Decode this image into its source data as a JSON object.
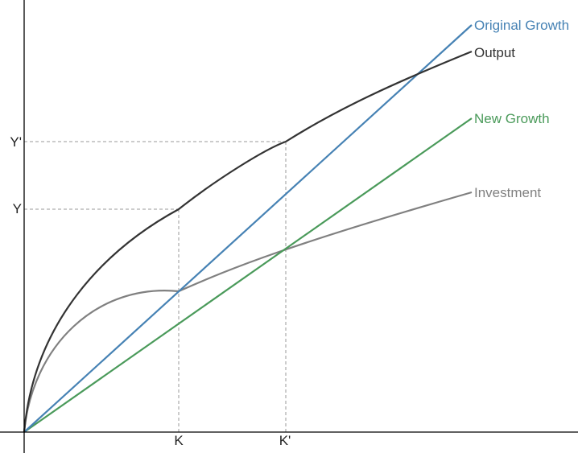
{
  "chart_data": {
    "type": "line",
    "title": "",
    "xlabel": "",
    "ylabel": "",
    "axis_ticks": {
      "x": [
        {
          "id": "k",
          "label": "K"
        },
        {
          "id": "k_prime",
          "label": "K'"
        }
      ],
      "y": [
        {
          "id": "y",
          "label": "Y"
        },
        {
          "id": "y_prime",
          "label": "Y'"
        }
      ]
    },
    "series": [
      {
        "id": "original_growth",
        "name": "Original Growth",
        "color": "#4682b4",
        "shape": "linear"
      },
      {
        "id": "output",
        "name": "Output",
        "color": "#333333",
        "shape": "concave"
      },
      {
        "id": "new_growth",
        "name": "New Growth",
        "color": "#4a9a5a",
        "shape": "linear"
      },
      {
        "id": "investment",
        "name": "Investment",
        "color": "#808080",
        "shape": "concave"
      }
    ],
    "guide_line_color": "#999999",
    "axis_color": "#000000"
  }
}
